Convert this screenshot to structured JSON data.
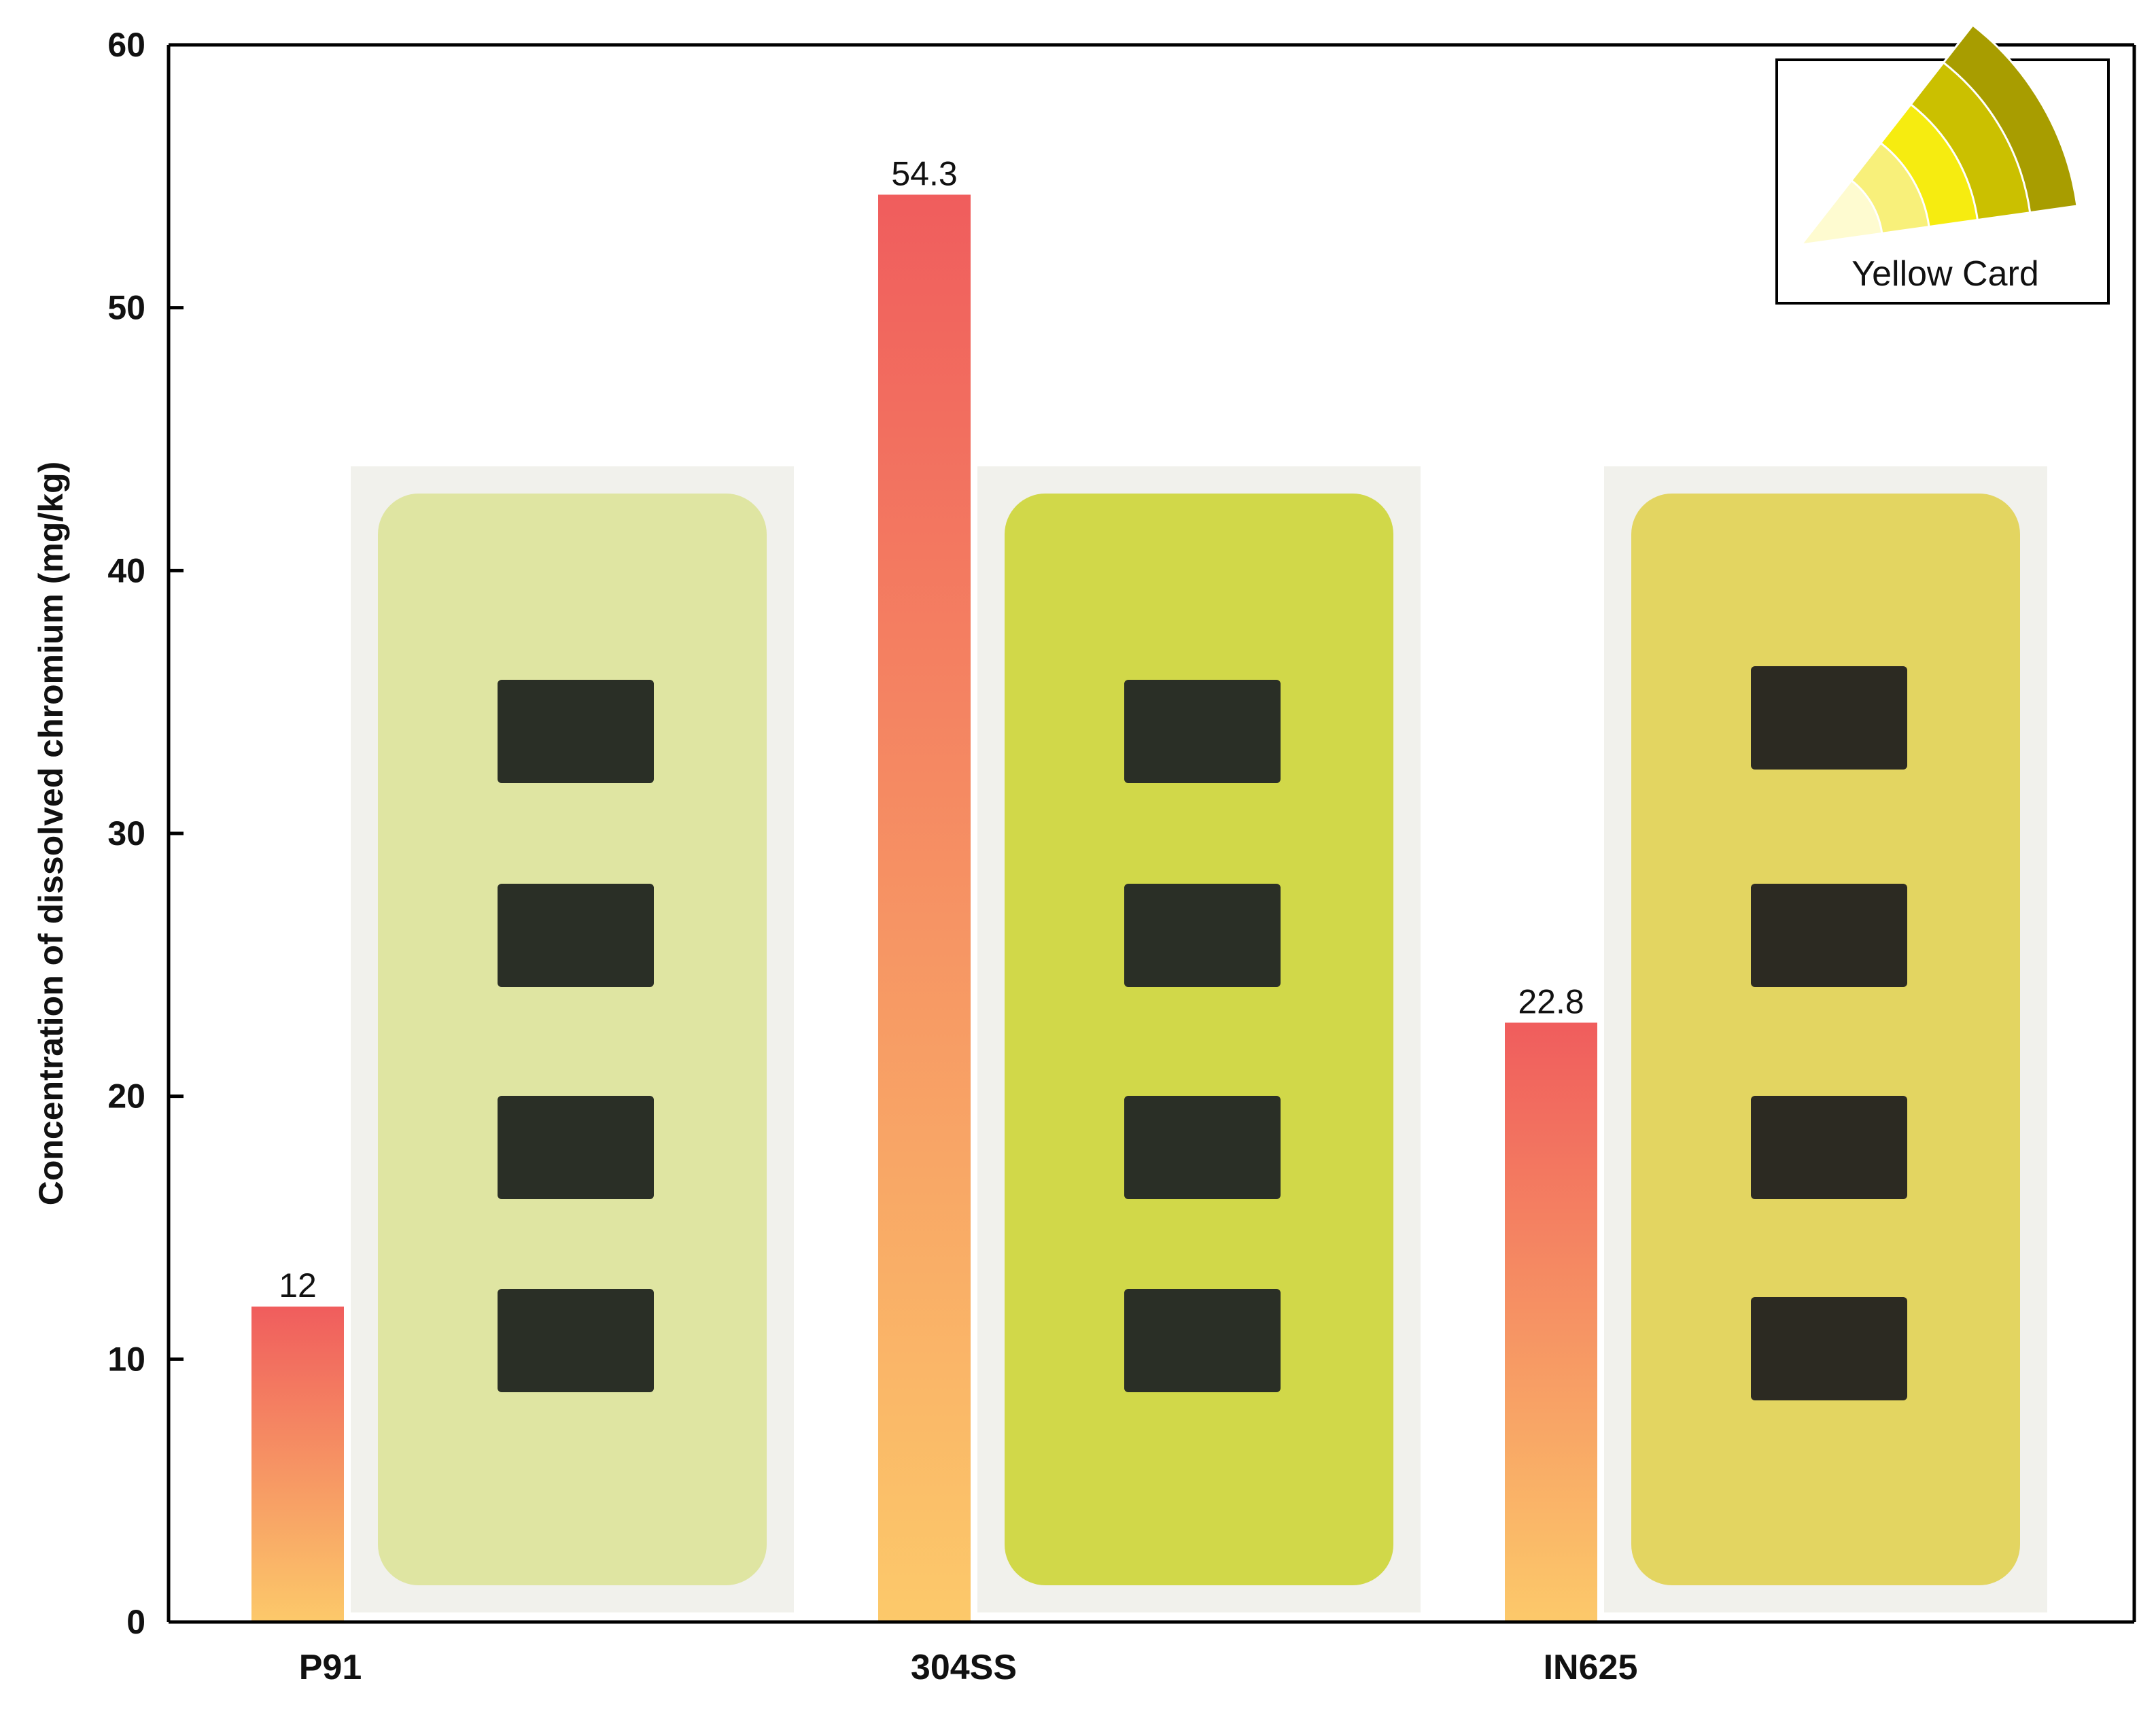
{
  "chart_data": {
    "type": "bar",
    "title": "",
    "xlabel": "",
    "ylabel": "Concentration of dissolved chromium (mg/kg)",
    "categories": [
      "P91",
      "304SS",
      "IN625"
    ],
    "values": [
      12,
      54.3,
      22.8
    ],
    "data_labels": [
      "12",
      "54.3",
      "22.8"
    ],
    "ylim": [
      0,
      60
    ],
    "yticks": [
      0,
      10,
      20,
      30,
      40,
      50,
      60
    ],
    "ytick_labels": [
      "0",
      "10",
      "20",
      "30",
      "40",
      "50",
      "60"
    ],
    "grid": false,
    "bar_gradient": {
      "top": "#f05d5d",
      "bottom": "#fcc96a"
    },
    "photo_tint": [
      "#dde49e",
      "#cfd640",
      "#e2d35a"
    ],
    "legend": {
      "label": "Yellow Card",
      "placement": "top-right",
      "swatches": [
        "#fefbd0",
        "#f8f07a",
        "#f6ec10",
        "#cbc000",
        "#a89d00"
      ]
    }
  }
}
